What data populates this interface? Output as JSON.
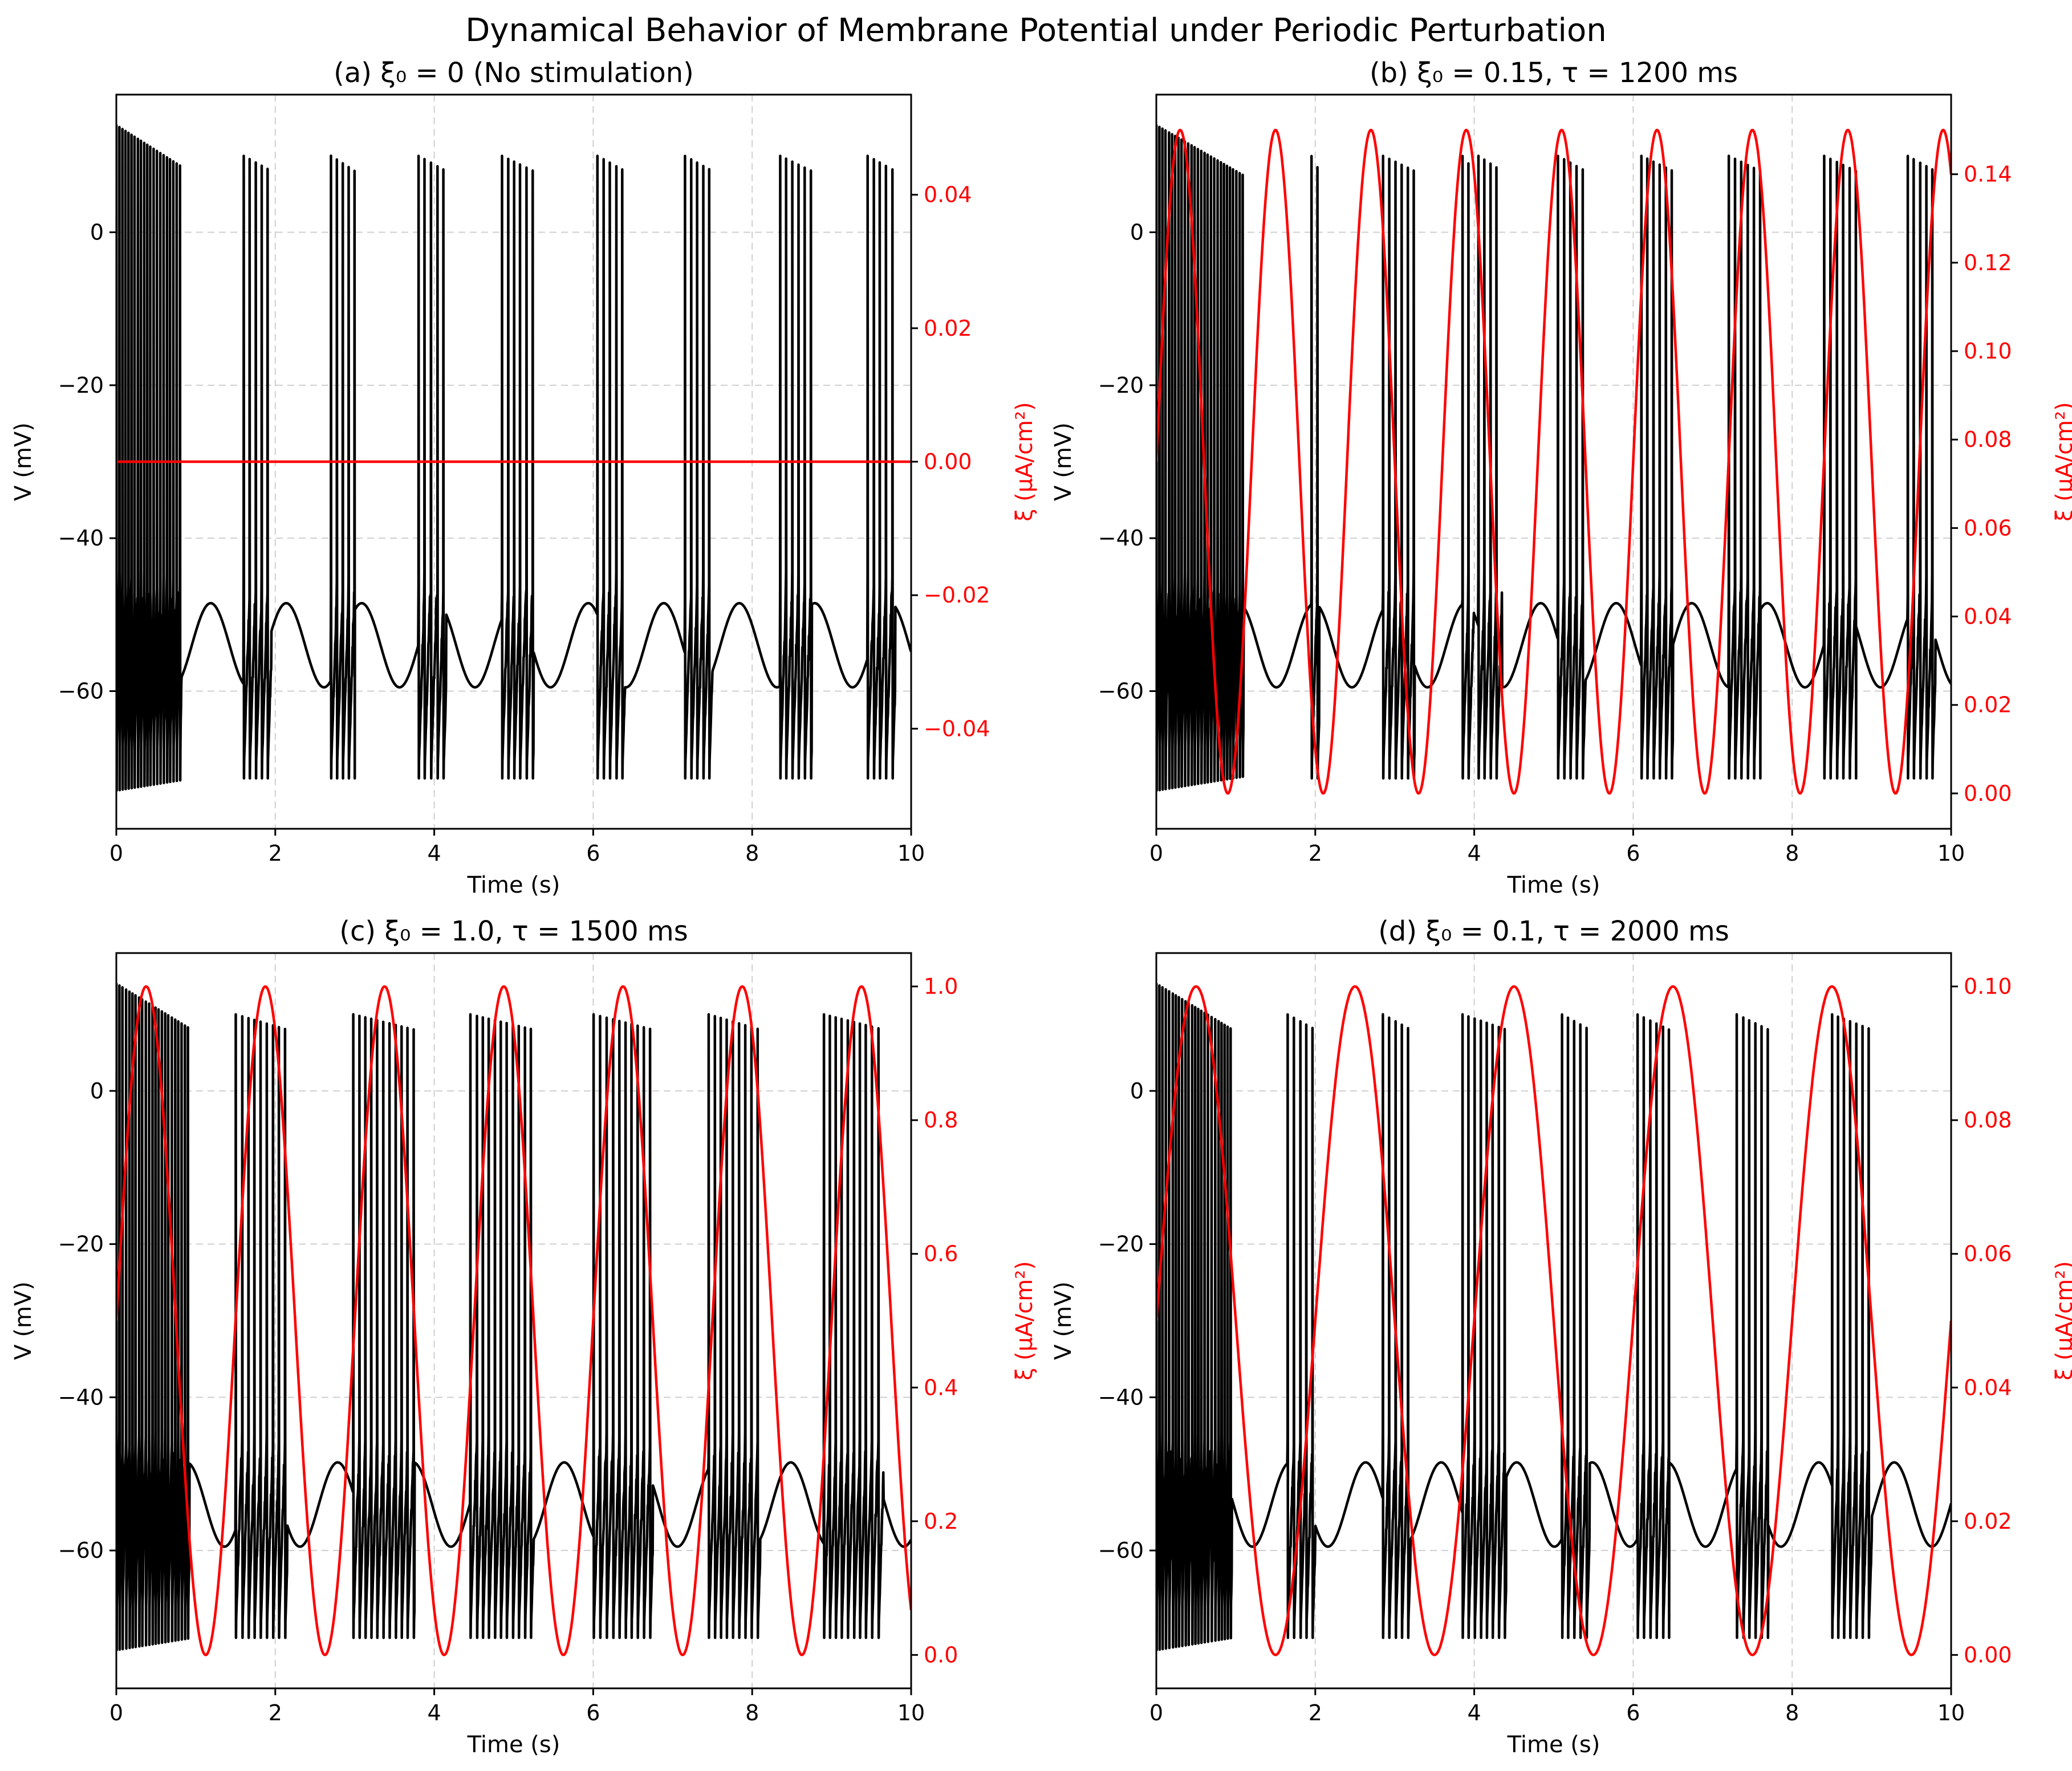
{
  "figure": {
    "title": "Dynamical Behavior of Membrane Potential under Periodic Perturbation",
    "colors": {
      "membrane": "#000000",
      "stimulus": "#ff0000",
      "grid": "#b0b0b0"
    }
  },
  "chart_data": [
    {
      "type": "line",
      "panel": "a",
      "title": "(a) ξ₀ = 0 (No stimulation)",
      "xlabel": "Time (s)",
      "ylabel": "V (mV)",
      "ylabel_right": "ξ (μA/cm²)",
      "xlim": [
        0,
        10
      ],
      "ylim": [
        -78,
        18
      ],
      "ylim_right": [
        -0.055,
        0.055
      ],
      "xticks": [
        0,
        2,
        4,
        6,
        8,
        10
      ],
      "yticks": [
        -60,
        -40,
        -20,
        0
      ],
      "yticks_right": [
        -0.04,
        -0.02,
        0.0,
        0.02,
        0.04
      ],
      "ytick_labels_right": [
        "−0.04",
        "−0.02",
        "0.00",
        "0.02",
        "0.04"
      ],
      "grid": true,
      "series": [
        {
          "axis": "left",
          "color": "#000000",
          "description_values": {
            "spike_peak_mV": 9,
            "spike_trough_mV": -72,
            "subthreshold_range_mV": [
              -60,
              -48
            ]
          },
          "bursts": [
            [
              0.0,
              0.82
            ],
            [
              1.6,
              1.95
            ],
            [
              2.7,
              3.0
            ],
            [
              3.8,
              4.15
            ],
            [
              4.85,
              5.25
            ],
            [
              6.05,
              6.4
            ],
            [
              7.15,
              7.5
            ],
            [
              8.35,
              8.75
            ],
            [
              9.45,
              9.8
            ]
          ]
        },
        {
          "axis": "right",
          "color": "#ff0000",
          "amplitude": 0,
          "period_s": null
        }
      ]
    },
    {
      "type": "line",
      "panel": "b",
      "title": "(b) ξ₀ = 0.15, τ = 1200 ms",
      "xlabel": "Time (s)",
      "ylabel": "V (mV)",
      "ylabel_right": "ξ (μA/cm²)",
      "xlim": [
        0,
        10
      ],
      "ylim": [
        -78,
        18
      ],
      "ylim_right": [
        -0.008,
        0.158
      ],
      "xticks": [
        0,
        2,
        4,
        6,
        8,
        10
      ],
      "yticks": [
        -60,
        -40,
        -20,
        0
      ],
      "yticks_right": [
        0.0,
        0.02,
        0.04,
        0.06,
        0.08,
        0.1,
        0.12,
        0.14
      ],
      "ytick_labels_right": [
        "0.00",
        "0.02",
        "0.04",
        "0.06",
        "0.08",
        "0.10",
        "0.12",
        "0.14"
      ],
      "grid": true,
      "series": [
        {
          "axis": "left",
          "color": "#000000",
          "bursts": [
            [
              0.0,
              1.1
            ],
            [
              1.95,
              2.05
            ],
            [
              2.85,
              3.25
            ],
            [
              3.85,
              4.0
            ],
            [
              4.05,
              4.35
            ],
            [
              5.05,
              5.4
            ],
            [
              6.1,
              6.5
            ],
            [
              7.2,
              7.6
            ],
            [
              8.4,
              8.8
            ],
            [
              9.45,
              9.8
            ]
          ]
        },
        {
          "axis": "right",
          "color": "#ff0000",
          "amplitude": 0.15,
          "period_s": 1.2,
          "form": "xi0*(1+sin(2*pi*t/tau))/2"
        }
      ]
    },
    {
      "type": "line",
      "panel": "c",
      "title": "(c) ξ₀ = 1.0, τ = 1500 ms",
      "xlabel": "Time (s)",
      "ylabel": "V (mV)",
      "ylabel_right": "ξ (μA/cm²)",
      "xlim": [
        0,
        10
      ],
      "ylim": [
        -78,
        18
      ],
      "ylim_right": [
        -0.05,
        1.05
      ],
      "xticks": [
        0,
        2,
        4,
        6,
        8,
        10
      ],
      "yticks": [
        -60,
        -40,
        -20,
        0
      ],
      "yticks_right": [
        0.0,
        0.2,
        0.4,
        0.6,
        0.8,
        1.0
      ],
      "ytick_labels_right": [
        "0.0",
        "0.2",
        "0.4",
        "0.6",
        "0.8",
        "1.0"
      ],
      "grid": true,
      "series": [
        {
          "axis": "left",
          "color": "#000000",
          "bursts": [
            [
              0.0,
              0.92
            ],
            [
              1.5,
              2.15
            ],
            [
              2.98,
              3.75
            ],
            [
              4.45,
              5.25
            ],
            [
              6.0,
              6.75
            ],
            [
              7.45,
              8.1
            ],
            [
              8.9,
              9.65
            ]
          ]
        },
        {
          "axis": "right",
          "color": "#ff0000",
          "amplitude": 1.0,
          "period_s": 1.5,
          "form": "xi0*(1+sin(2*pi*t/tau))/2"
        }
      ]
    },
    {
      "type": "line",
      "panel": "d",
      "title": "(d) ξ₀ = 0.1, τ = 2000 ms",
      "xlabel": "Time (s)",
      "ylabel": "V (mV)",
      "ylabel_right": "ξ (μA/cm²)",
      "xlim": [
        0,
        10
      ],
      "ylim": [
        -78,
        18
      ],
      "ylim_right": [
        -0.005,
        0.105
      ],
      "xticks": [
        0,
        2,
        4,
        6,
        8,
        10
      ],
      "yticks": [
        -60,
        -40,
        -20,
        0
      ],
      "yticks_right": [
        0.0,
        0.02,
        0.04,
        0.06,
        0.08,
        0.1
      ],
      "ytick_labels_right": [
        "0.00",
        "0.02",
        "0.04",
        "0.06",
        "0.08",
        "0.10"
      ],
      "grid": true,
      "series": [
        {
          "axis": "left",
          "color": "#000000",
          "bursts": [
            [
              0.0,
              0.95
            ],
            [
              1.65,
              2.0
            ],
            [
              2.85,
              3.2
            ],
            [
              3.85,
              4.4
            ],
            [
              5.1,
              5.45
            ],
            [
              6.05,
              6.45
            ],
            [
              7.3,
              7.7
            ],
            [
              8.5,
              9.0
            ]
          ]
        },
        {
          "axis": "right",
          "color": "#ff0000",
          "amplitude": 0.1,
          "period_s": 2.0,
          "form": "xi0*(1+sin(2*pi*t/tau))/2"
        }
      ]
    }
  ]
}
